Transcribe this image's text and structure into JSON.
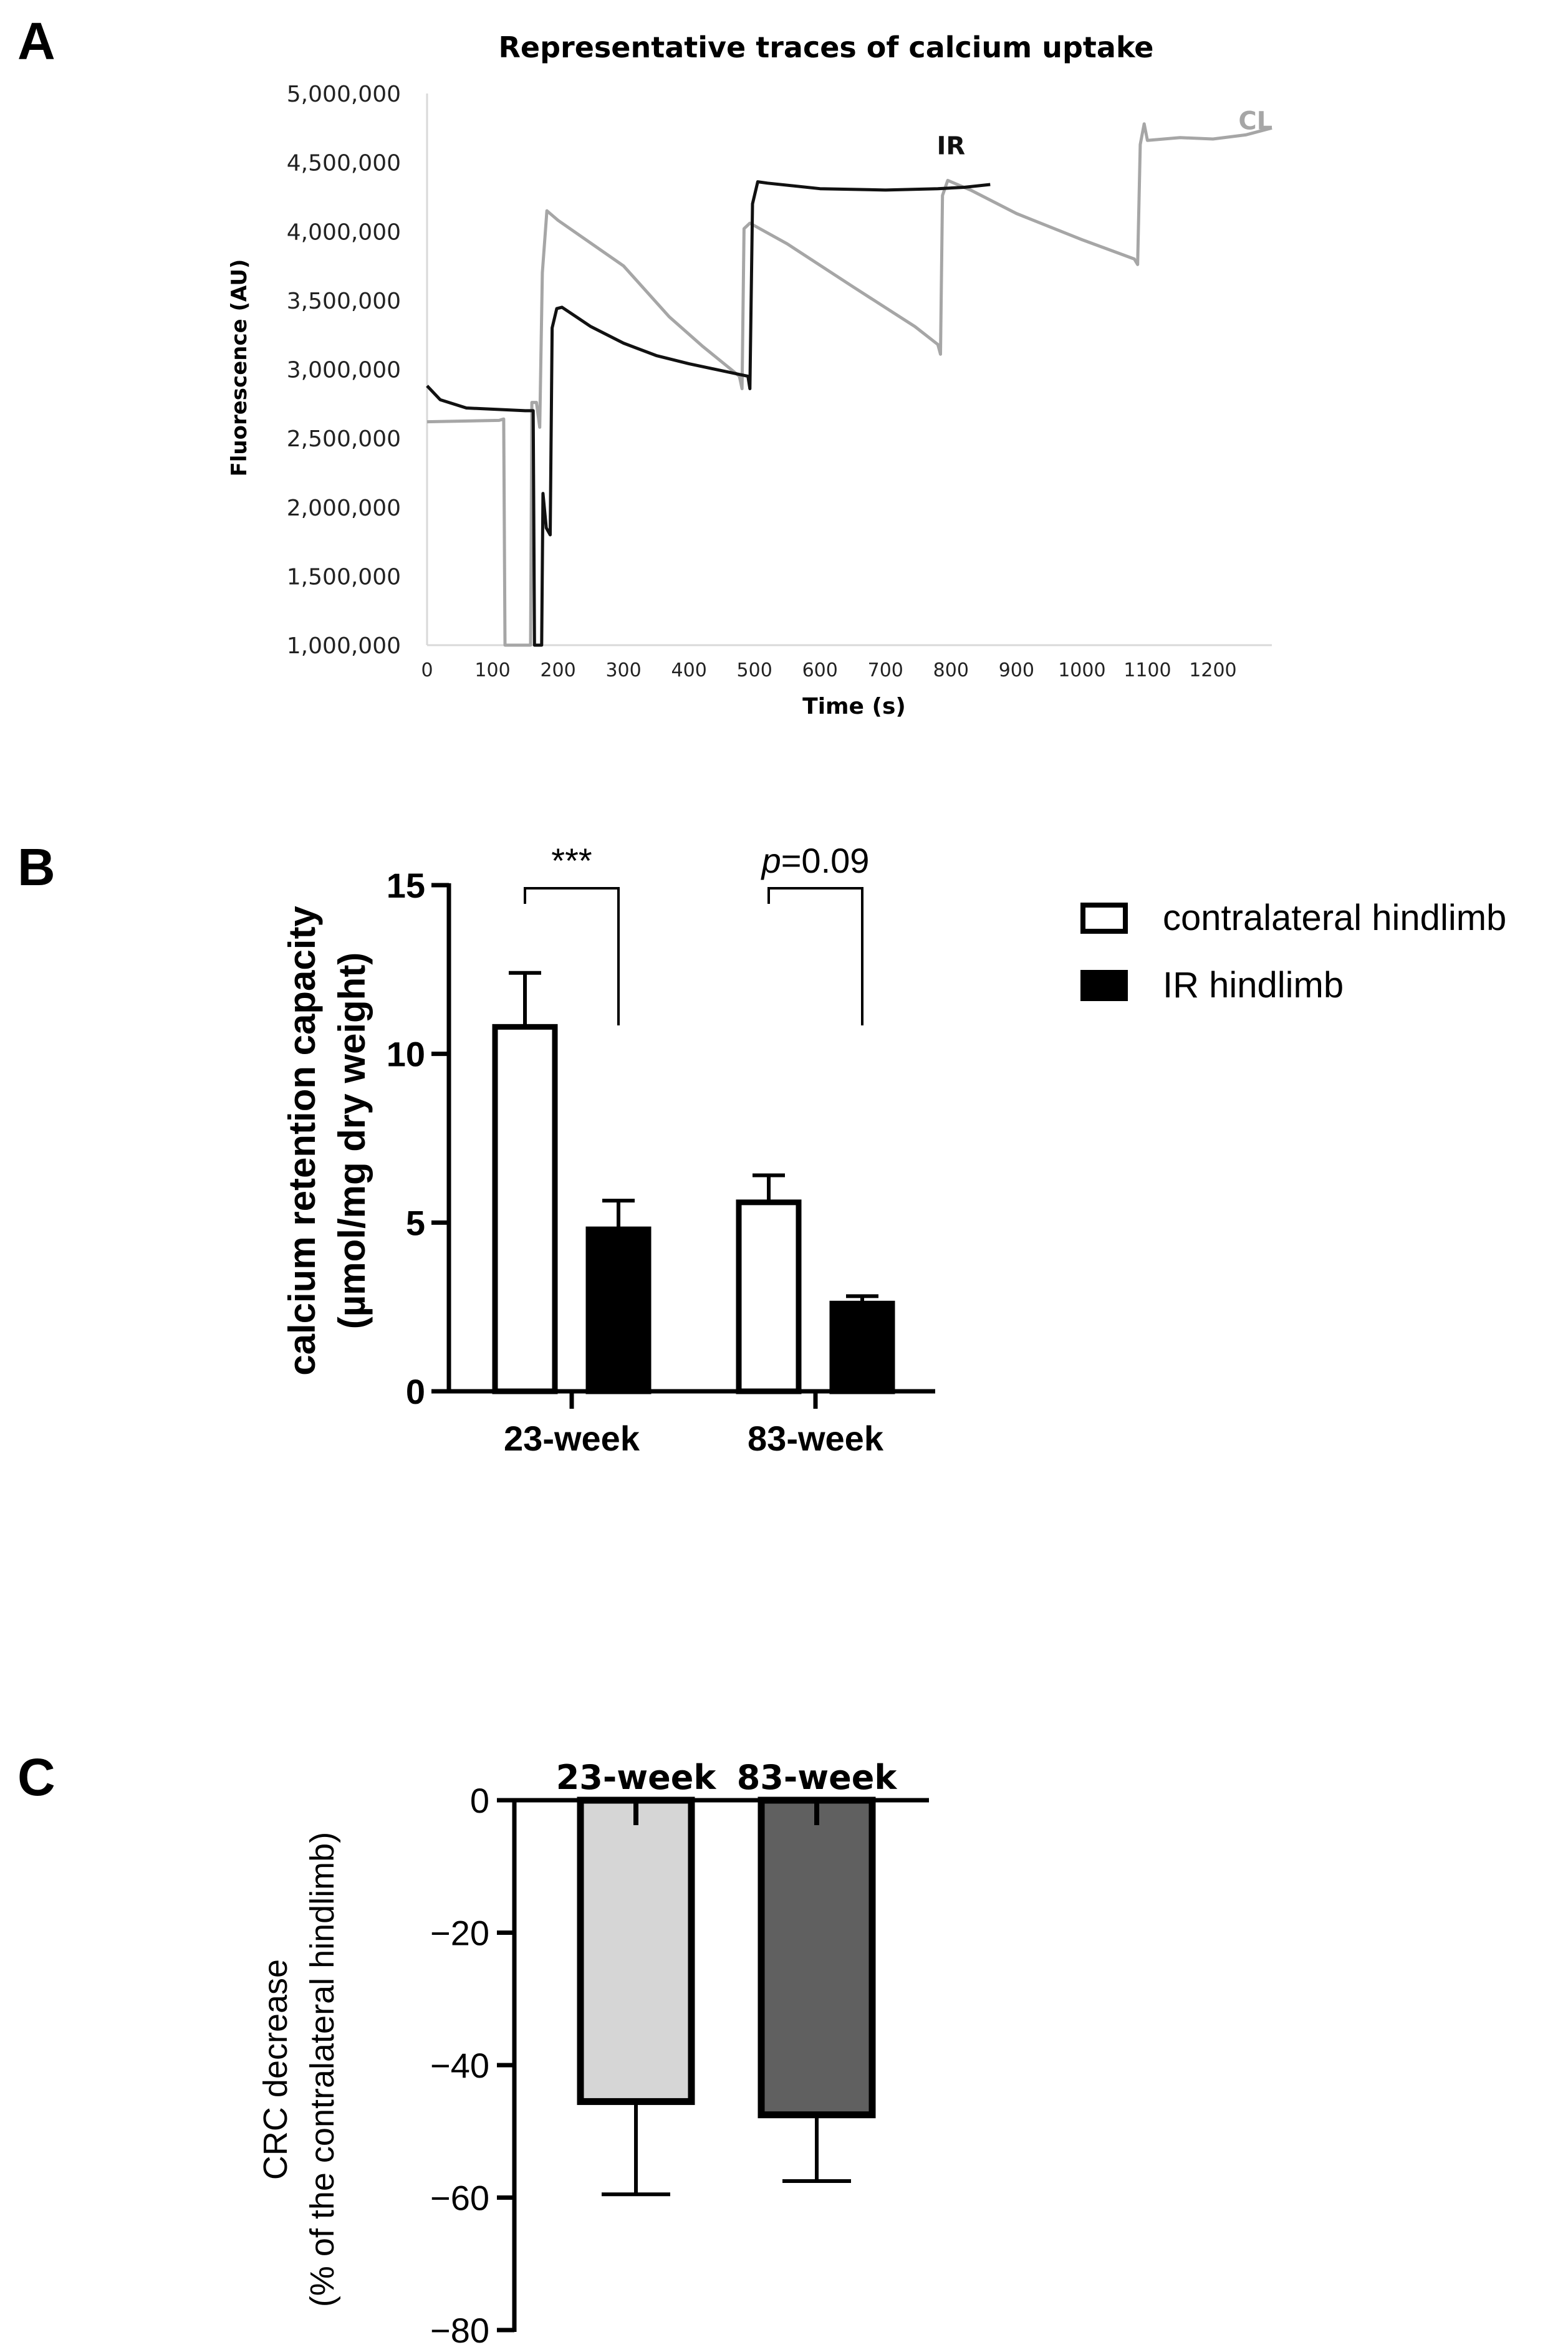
{
  "panels": {
    "a": "A",
    "b": "B",
    "c": "C"
  },
  "chart_data": [
    {
      "panel": "A",
      "type": "line",
      "title": "Representative traces of calcium uptake",
      "xlabel": "Time (s)",
      "ylabel": "Fluorescence (AU)",
      "xlim": [
        0,
        1290
      ],
      "ylim": [
        1000000,
        5000000
      ],
      "xticks": [
        0,
        100,
        200,
        300,
        400,
        500,
        600,
        700,
        800,
        900,
        1000,
        1100,
        1200
      ],
      "yticks": [
        1000000,
        1500000,
        2000000,
        2500000,
        3000000,
        3500000,
        4000000,
        4500000,
        5000000
      ],
      "ytick_labels": [
        "1,000,000",
        "1,500,000",
        "2,000,000",
        "2,500,000",
        "3,000,000",
        "3,500,000",
        "4,000,000",
        "4,500,000",
        "5,000,000"
      ],
      "series": [
        {
          "name": "CL",
          "color": "#a6a6a6",
          "points": [
            [
              0,
              2620000
            ],
            [
              110,
              2630000
            ],
            [
              117,
              2640000
            ],
            [
              119,
              1000000
            ],
            [
              158,
              1000000
            ],
            [
              160,
              2760000
            ],
            [
              167,
              2760000
            ],
            [
              172,
              2580000
            ],
            [
              176,
              3700000
            ],
            [
              183,
              4150000
            ],
            [
              200,
              4080000
            ],
            [
              300,
              3750000
            ],
            [
              370,
              3380000
            ],
            [
              420,
              3170000
            ],
            [
              477,
              2950000
            ],
            [
              481,
              2860000
            ],
            [
              484,
              4020000
            ],
            [
              493,
              4060000
            ],
            [
              550,
              3910000
            ],
            [
              650,
              3600000
            ],
            [
              745,
              3310000
            ],
            [
              780,
              3180000
            ],
            [
              784,
              3110000
            ],
            [
              787,
              4260000
            ],
            [
              795,
              4370000
            ],
            [
              830,
              4300000
            ],
            [
              900,
              4130000
            ],
            [
              1000,
              3940000
            ],
            [
              1080,
              3800000
            ],
            [
              1085,
              3760000
            ],
            [
              1089,
              4630000
            ],
            [
              1095,
              4780000
            ],
            [
              1100,
              4660000
            ],
            [
              1150,
              4680000
            ],
            [
              1200,
              4670000
            ],
            [
              1250,
              4700000
            ],
            [
              1290,
              4750000
            ]
          ]
        },
        {
          "name": "IR",
          "color": "#111111",
          "points": [
            [
              0,
              2880000
            ],
            [
              20,
              2780000
            ],
            [
              60,
              2720000
            ],
            [
              150,
              2700000
            ],
            [
              162,
              2700000
            ],
            [
              164,
              1000000
            ],
            [
              175,
              1000000
            ],
            [
              177,
              2100000
            ],
            [
              182,
              1850000
            ],
            [
              188,
              1800000
            ],
            [
              191,
              3300000
            ],
            [
              198,
              3440000
            ],
            [
              206,
              3450000
            ],
            [
              250,
              3310000
            ],
            [
              300,
              3190000
            ],
            [
              350,
              3100000
            ],
            [
              400,
              3040000
            ],
            [
              450,
              2990000
            ],
            [
              490,
              2950000
            ],
            [
              493,
              2860000
            ],
            [
              497,
              4200000
            ],
            [
              505,
              4360000
            ],
            [
              520,
              4350000
            ],
            [
              600,
              4310000
            ],
            [
              700,
              4300000
            ],
            [
              780,
              4310000
            ],
            [
              820,
              4320000
            ],
            [
              860,
              4340000
            ]
          ]
        }
      ],
      "annotations": [
        {
          "text": "IR",
          "x": 800,
          "y": 4560000,
          "color": "#111111"
        },
        {
          "text": "CL",
          "x": 1265,
          "y": 4740000,
          "color": "#a6a6a6"
        }
      ]
    },
    {
      "panel": "B",
      "type": "bar",
      "ylabel": [
        "calcium retention capacity",
        "(µmol/mg dry weight)"
      ],
      "categories": [
        "23-week",
        "83-week"
      ],
      "ylim": [
        0,
        15
      ],
      "yticks": [
        0,
        5,
        10,
        15
      ],
      "series": [
        {
          "name": "contralateral hindlimb",
          "fill": "#ffffff",
          "values": [
            10.8,
            5.6
          ],
          "errors": [
            1.6,
            0.8
          ]
        },
        {
          "name": "IR hindlimb",
          "fill": "#000000",
          "values": [
            4.8,
            2.6
          ],
          "errors": [
            0.85,
            0.22
          ]
        }
      ],
      "significance": [
        {
          "category": "23-week",
          "label": "***",
          "bracket_y": 15
        },
        {
          "category": "83-week",
          "label_italic": "p",
          "label": "=0.09",
          "bracket_y": 15
        }
      ],
      "legend": "top-right"
    },
    {
      "panel": "C",
      "type": "bar",
      "ylabel": [
        "CRC decrease",
        "(% of the contralateral hindlimb)"
      ],
      "categories": [
        "23-week",
        "83-week"
      ],
      "ylim": [
        -80,
        0
      ],
      "yticks": [
        0,
        -20,
        -40,
        -60,
        -80
      ],
      "ytick_labels": [
        "0",
        "−20",
        "−40",
        "−60",
        "−80"
      ],
      "values": [
        -45.5,
        -47.5
      ],
      "errors": [
        14,
        10
      ],
      "colors": [
        "#d6d6d6",
        "#606060"
      ]
    }
  ]
}
